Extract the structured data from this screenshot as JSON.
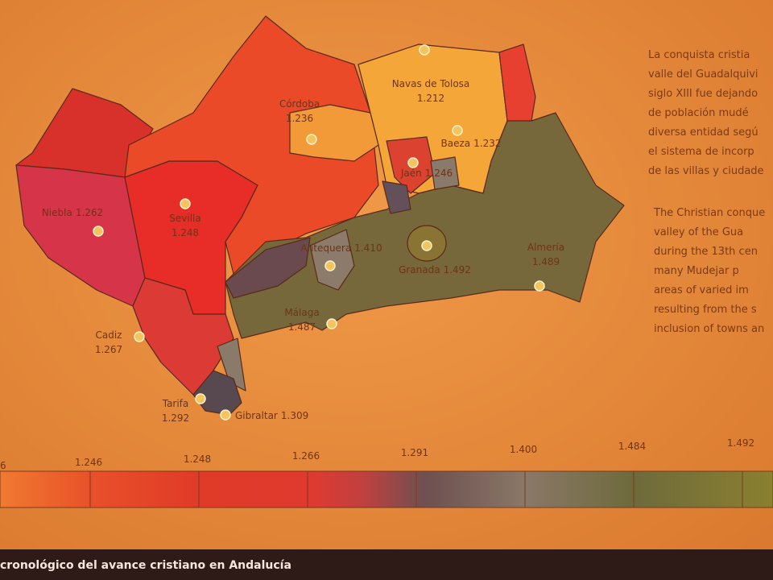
{
  "map": {
    "places": [
      {
        "name": "Córdoba",
        "year": "1.236"
      },
      {
        "name": "Navas de Tolosa",
        "year": "1.212"
      },
      {
        "name": "Baeza",
        "year": "1.232"
      },
      {
        "name": "Jaén",
        "year": "1.246"
      },
      {
        "name": "Niebla",
        "year": "1.262"
      },
      {
        "name": "Sevilla",
        "year": "1.248"
      },
      {
        "name": "Antequera",
        "year": "1.410"
      },
      {
        "name": "Granada",
        "year": "1.492"
      },
      {
        "name": "Almería",
        "year": "1.489"
      },
      {
        "name": "Málaga",
        "year": "1.487"
      },
      {
        "name": "Cadiz",
        "year": "1.267"
      },
      {
        "name": "Tarifa",
        "year": "1.292"
      },
      {
        "name": "Gibraltar",
        "year": "1.309"
      }
    ]
  },
  "text_es": {
    "lines": [
      "La conquista cristia",
      "valle del Guadalquivi",
      "siglo XIII fue dejando",
      "de población mudé",
      "diversa entidad segú",
      "el sistema de incorp",
      "de las villas y ciudade"
    ]
  },
  "text_en": {
    "lines": [
      "The Christian conque",
      "valley of the Gua",
      "during the 13th cen",
      "many Mudejar p",
      "areas of varied im",
      "resulting from the s",
      "inclusion of towns an"
    ]
  },
  "legend": {
    "ticks": [
      "6",
      "1.246",
      "1.248",
      "1.266",
      "1.291",
      "1.400",
      "1.484",
      "1.492"
    ]
  },
  "footer": {
    "caption": "cronológico del avance cristiano en Andalucía"
  }
}
